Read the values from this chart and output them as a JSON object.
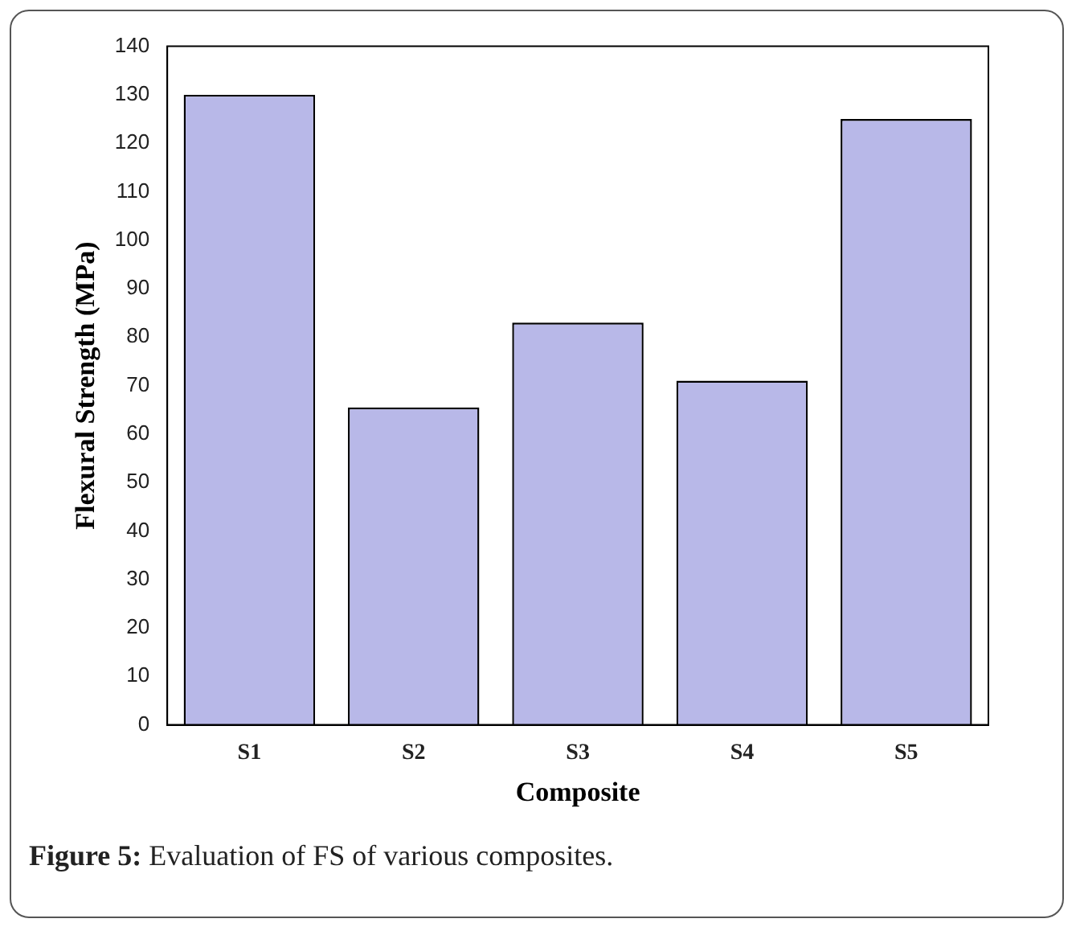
{
  "chart_data": {
    "type": "bar",
    "xlabel": "Composite",
    "ylabel": "Flexural Strength (MPa)",
    "categories": [
      "S1",
      "S2",
      "S3",
      "S4",
      "S5"
    ],
    "values": [
      130,
      65.5,
      83,
      71,
      125
    ],
    "color": "#b8b8e8",
    "ylim": [
      0,
      140
    ],
    "yticks": [
      0,
      10,
      20,
      30,
      40,
      50,
      60,
      70,
      80,
      90,
      100,
      110,
      120,
      130,
      140
    ],
    "grid": false,
    "legend": false,
    "annotations": [
      "Figure 5: Evaluation of FS of various composites."
    ]
  }
}
